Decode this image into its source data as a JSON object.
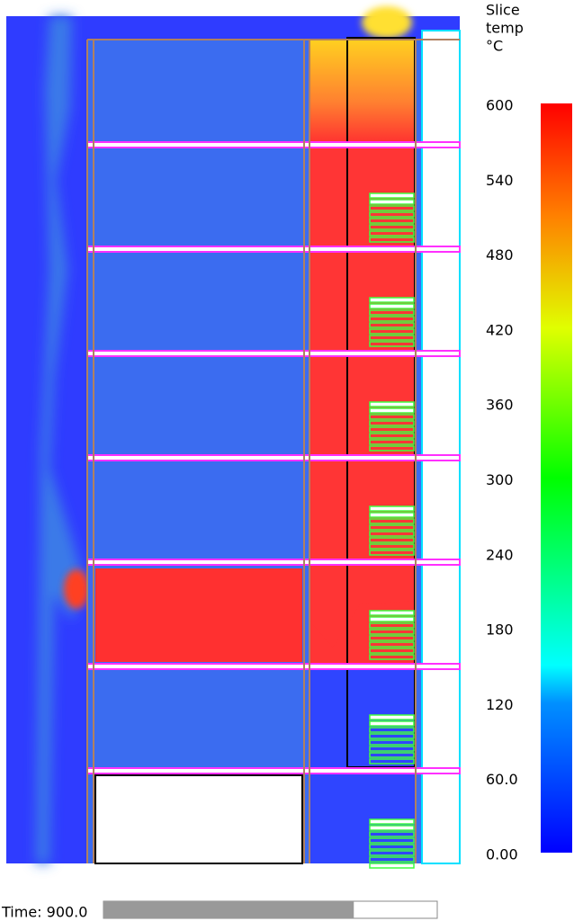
{
  "legend": {
    "title": [
      "Slice",
      "temp",
      "°C"
    ],
    "ticks": [
      600,
      540,
      480,
      420,
      360,
      300,
      240,
      180,
      120,
      {
        "value": 60,
        "label": "60.0"
      },
      {
        "value": 0,
        "label": "0.00"
      }
    ]
  },
  "time_label": "Time: 900.0",
  "progress": 0.75
}
